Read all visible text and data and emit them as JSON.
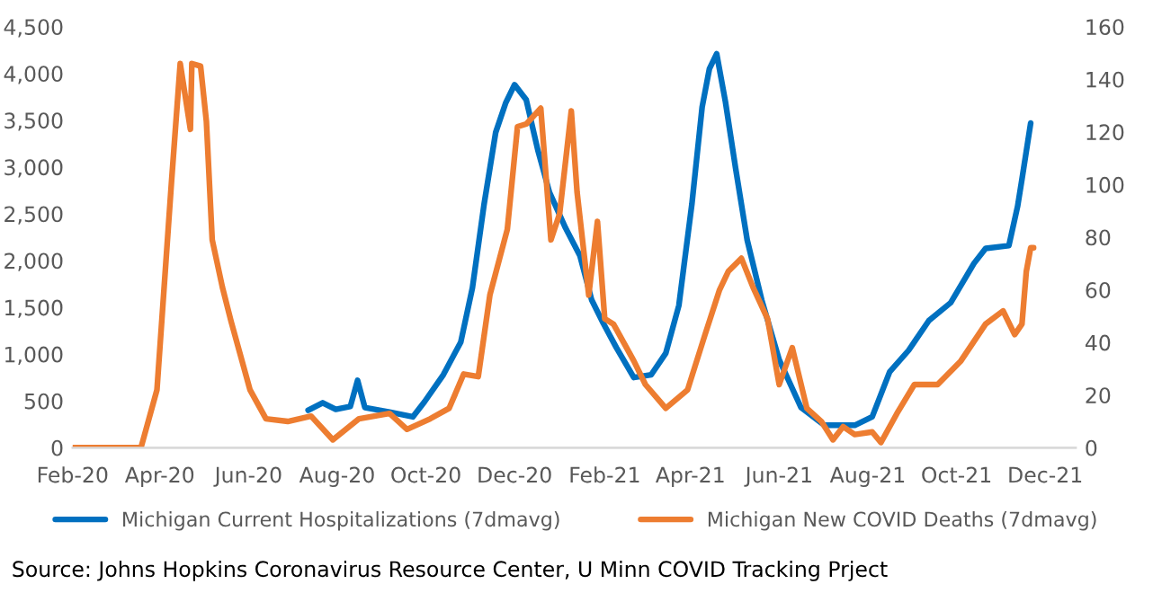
{
  "chart_data": {
    "type": "line",
    "xlim": [
      "2020-02-01",
      "2021-12-22"
    ],
    "xticks": [
      {
        "value": "2020-02-01",
        "label": "Feb-20"
      },
      {
        "value": "2020-04-01",
        "label": "Apr-20"
      },
      {
        "value": "2020-06-01",
        "label": "Jun-20"
      },
      {
        "value": "2020-08-01",
        "label": "Aug-20"
      },
      {
        "value": "2020-10-01",
        "label": "Oct-20"
      },
      {
        "value": "2020-12-01",
        "label": "Dec-20"
      },
      {
        "value": "2021-02-01",
        "label": "Feb-21"
      },
      {
        "value": "2021-04-01",
        "label": "Apr-21"
      },
      {
        "value": "2021-06-01",
        "label": "Jun-21"
      },
      {
        "value": "2021-08-01",
        "label": "Aug-21"
      },
      {
        "value": "2021-10-01",
        "label": "Oct-21"
      },
      {
        "value": "2021-12-01",
        "label": "Dec-21"
      }
    ],
    "ylim": [
      0,
      4500
    ],
    "yticks": [
      {
        "value": 0,
        "label": "0"
      },
      {
        "value": 500,
        "label": "500"
      },
      {
        "value": 1000,
        "label": "1,000"
      },
      {
        "value": 1500,
        "label": "1,500"
      },
      {
        "value": 2000,
        "label": "2,000"
      },
      {
        "value": 2500,
        "label": "2,500"
      },
      {
        "value": 3000,
        "label": "3,000"
      },
      {
        "value": 3500,
        "label": "3,500"
      },
      {
        "value": 4000,
        "label": "4,000"
      },
      {
        "value": 4500,
        "label": "4,500"
      }
    ],
    "y2lim": [
      0,
      160
    ],
    "y2ticks": [
      0,
      20,
      40,
      60,
      80,
      100,
      120,
      140,
      160
    ],
    "grid": false,
    "legend": "bottom",
    "line_style": "solid",
    "marker": "none",
    "annotations": [
      "Source: Johns Hopkins Coronavirus Resource Center, U Minn COVID Tracking Prject"
    ],
    "series": [
      {
        "name": "Michigan Current Hospitalizations (7dmavg)",
        "color": "#0070c0",
        "x": [
          "2020-07-12",
          "2020-07-22",
          "2020-07-31",
          "2020-08-10",
          "2020-08-15",
          "2020-08-20",
          "2020-09-06",
          "2020-09-22",
          "2020-09-30",
          "2020-10-13",
          "2020-10-25",
          "2020-11-02",
          "2020-11-10",
          "2020-11-18",
          "2020-11-25",
          "2020-12-01",
          "2020-12-09",
          "2020-12-17",
          "2020-12-25",
          "2021-01-05",
          "2021-01-15",
          "2021-01-23",
          "2021-01-31",
          "2021-02-09",
          "2021-02-21",
          "2021-03-05",
          "2021-03-15",
          "2021-03-24",
          "2021-04-02",
          "2021-04-09",
          "2021-04-14",
          "2021-04-19",
          "2021-04-25",
          "2021-05-02",
          "2021-05-10",
          "2021-05-20",
          "2021-06-01",
          "2021-06-16",
          "2021-07-02",
          "2021-07-23",
          "2021-08-04",
          "2021-08-16",
          "2021-08-29",
          "2021-09-12",
          "2021-09-27",
          "2021-10-13",
          "2021-10-21",
          "2021-11-06",
          "2021-11-12",
          "2021-11-15",
          "2021-11-21"
        ],
        "values": [
          400,
          480,
          410,
          440,
          720,
          430,
          380,
          330,
          490,
          780,
          1130,
          1710,
          2600,
          3370,
          3690,
          3880,
          3720,
          3180,
          2730,
          2350,
          2050,
          1580,
          1330,
          1070,
          750,
          780,
          1010,
          1520,
          2610,
          3640,
          4050,
          4210,
          3700,
          2990,
          2220,
          1580,
          940,
          430,
          240,
          240,
          330,
          810,
          1040,
          1360,
          1550,
          1970,
          2130,
          2160,
          2580,
          2870,
          3470
        ]
      },
      {
        "name": "Michigan New COVID Deaths (7dmavg)",
        "color": "#ed7d31",
        "axis": "y2",
        "x": [
          "2020-02-01",
          "2020-03-19",
          "2020-03-30",
          "2020-04-09",
          "2020-04-15",
          "2020-04-22",
          "2020-04-23",
          "2020-04-29",
          "2020-05-03",
          "2020-05-07",
          "2020-05-14",
          "2020-05-20",
          "2020-05-26",
          "2020-06-02",
          "2020-06-13",
          "2020-06-28",
          "2020-07-14",
          "2020-07-29",
          "2020-08-16",
          "2020-09-06",
          "2020-09-18",
          "2020-10-04",
          "2020-10-17",
          "2020-10-27",
          "2020-11-06",
          "2020-11-14",
          "2020-11-26",
          "2020-12-03",
          "2020-12-09",
          "2020-12-19",
          "2020-12-26",
          "2021-01-01",
          "2021-01-09",
          "2021-01-13",
          "2021-01-21",
          "2021-01-27",
          "2021-02-01",
          "2021-02-07",
          "2021-02-21",
          "2021-03-01",
          "2021-03-15",
          "2021-03-30",
          "2021-04-11",
          "2021-04-21",
          "2021-04-27",
          "2021-05-06",
          "2021-05-14",
          "2021-05-24",
          "2021-06-01",
          "2021-06-10",
          "2021-06-20",
          "2021-06-30",
          "2021-07-08",
          "2021-07-15",
          "2021-07-23",
          "2021-08-04",
          "2021-08-10",
          "2021-08-21",
          "2021-09-02",
          "2021-09-18",
          "2021-10-04",
          "2021-10-21",
          "2021-11-02",
          "2021-11-10",
          "2021-11-15",
          "2021-11-18",
          "2021-11-21",
          "2021-11-23"
        ],
        "values": [
          0,
          0,
          22,
          101,
          146,
          121,
          146,
          145,
          124,
          79,
          61,
          48,
          36,
          22,
          11,
          10,
          12,
          3,
          11,
          13,
          7,
          11,
          15,
          28,
          27,
          58,
          83,
          122,
          123,
          129,
          79,
          89,
          128,
          97,
          58,
          86,
          49,
          47,
          33,
          24,
          15,
          22,
          43,
          60,
          67,
          72,
          61,
          49,
          24,
          38,
          15,
          10,
          3,
          8,
          5,
          6,
          2,
          13,
          24,
          24,
          33,
          47,
          52,
          43,
          47,
          67,
          76,
          76
        ]
      }
    ]
  }
}
